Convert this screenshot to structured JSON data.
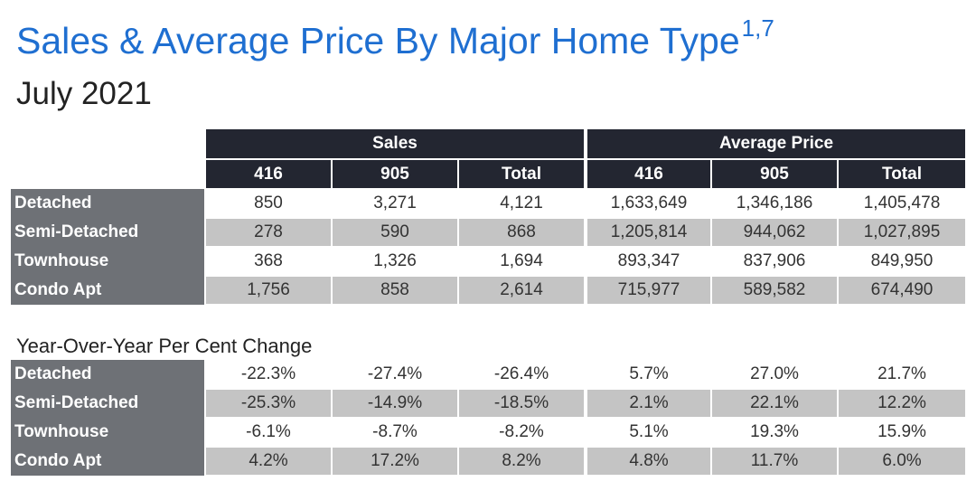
{
  "title": "Sales & Average Price By Major Home Type",
  "title_superscript": "1,7",
  "subtitle": "July 2021",
  "groups": [
    "Sales",
    "Average Price"
  ],
  "columns": [
    "416",
    "905",
    "Total",
    "416",
    "905",
    "Total"
  ],
  "rows": [
    {
      "label": "Detached",
      "values": [
        "850",
        "3,271",
        "4,121",
        "1,633,649",
        "1,346,186",
        "1,405,478"
      ]
    },
    {
      "label": "Semi-Detached",
      "values": [
        "278",
        "590",
        "868",
        "1,205,814",
        "944,062",
        "1,027,895"
      ]
    },
    {
      "label": "Townhouse",
      "values": [
        "368",
        "1,326",
        "1,694",
        "893,347",
        "837,906",
        "849,950"
      ]
    },
    {
      "label": "Condo Apt",
      "values": [
        "1,756",
        "858",
        "2,614",
        "715,977",
        "589,582",
        "674,490"
      ]
    }
  ],
  "yoy_title": "Year-Over-Year Per Cent Change",
  "yoy_rows": [
    {
      "label": "Detached",
      "values": [
        "-22.3%",
        "-27.4%",
        "-26.4%",
        "5.7%",
        "27.0%",
        "21.7%"
      ]
    },
    {
      "label": "Semi-Detached",
      "values": [
        "-25.3%",
        "-14.9%",
        "-18.5%",
        "2.1%",
        "22.1%",
        "12.2%"
      ]
    },
    {
      "label": "Townhouse",
      "values": [
        "-6.1%",
        "-8.7%",
        "-8.2%",
        "5.1%",
        "19.3%",
        "15.9%"
      ]
    },
    {
      "label": "Condo Apt",
      "values": [
        "4.2%",
        "17.2%",
        "8.2%",
        "4.8%",
        "11.7%",
        "6.0%"
      ]
    }
  ],
  "colors": {
    "title": "#1f6fd1",
    "header_bg": "#232631",
    "label_bg": "#6e7176",
    "alt_row": "#c4c4c4"
  }
}
